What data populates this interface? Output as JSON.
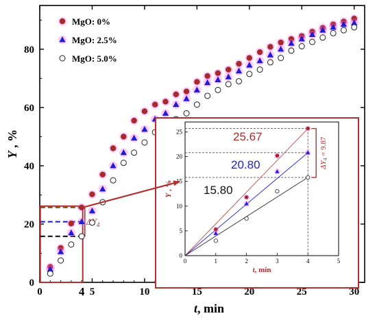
{
  "chart_data": {
    "type": "scatter",
    "xlabel_var": "t",
    "xlabel_unit": ", min",
    "ylabel_var": "Y",
    "ylabel_unit": " , %",
    "xlim": [
      0,
      31
    ],
    "ylim": [
      0,
      95
    ],
    "xticks": [
      0,
      5,
      10,
      15,
      20,
      25,
      30
    ],
    "yticks": [
      0,
      20,
      40,
      60,
      80
    ],
    "highlight_x_tick": "4",
    "legend_position": "top-left",
    "series": [
      {
        "name": "MgO: 0%",
        "marker": "filled-circle",
        "color": "#a52a2a",
        "glow": "#ff66ff",
        "x": [
          1,
          2,
          3,
          4,
          5,
          6,
          7,
          8,
          9,
          10,
          11,
          12,
          13,
          14,
          15,
          16,
          17,
          18,
          19,
          20,
          21,
          22,
          23,
          24,
          25,
          26,
          27,
          28,
          29,
          30
        ],
        "y": [
          5.3,
          11.8,
          20.2,
          25.7,
          30.2,
          37.0,
          46.0,
          50.0,
          55.5,
          58.7,
          61.0,
          62.0,
          64.5,
          65.5,
          68.8,
          70.8,
          71.8,
          73.0,
          75.0,
          77.0,
          79.0,
          80.8,
          82.3,
          83.5,
          84.5,
          86.0,
          87.3,
          88.5,
          89.5,
          90.5
        ]
      },
      {
        "name": "MgO: 2.5%",
        "marker": "filled-triangle",
        "color": "#1f1fd0",
        "glow": "#ff66ff",
        "x": [
          1,
          2,
          3,
          4,
          5,
          6,
          7,
          8,
          9,
          10,
          11,
          12,
          13,
          14,
          15,
          16,
          17,
          18,
          19,
          20,
          21,
          22,
          23,
          24,
          25,
          26,
          27,
          28,
          29,
          30
        ],
        "y": [
          4.5,
          10.5,
          17.0,
          20.8,
          24.5,
          32.0,
          40.0,
          44.5,
          49.5,
          52.5,
          56.0,
          58.0,
          61.0,
          63.0,
          66.0,
          68.5,
          69.5,
          70.5,
          72.5,
          74.5,
          76.0,
          78.0,
          80.0,
          82.0,
          83.5,
          85.0,
          86.5,
          87.5,
          88.5,
          89.0
        ]
      },
      {
        "name": "MgO: 5.0%",
        "marker": "open-circle",
        "color": "#222222",
        "glow": "none",
        "x": [
          1,
          2,
          3,
          4,
          5,
          6,
          7,
          8,
          9,
          10,
          11,
          12,
          13,
          14,
          15,
          16,
          17,
          18,
          19,
          20,
          21,
          22,
          23,
          24,
          25,
          26,
          27,
          28,
          29,
          30
        ],
        "y": [
          3.0,
          7.5,
          13.0,
          15.8,
          20.5,
          27.5,
          35.0,
          41.0,
          44.5,
          48.0,
          51.5,
          55.0,
          56.0,
          58.0,
          61.0,
          64.0,
          66.0,
          68.0,
          69.0,
          71.5,
          73.0,
          75.5,
          77.0,
          79.5,
          81.0,
          82.5,
          84.0,
          85.5,
          86.5,
          87.5
        ]
      }
    ],
    "main_marker": {
      "delta_label": "ΔY",
      "delta_sub": "4"
    },
    "inset": {
      "xlabel_var": "t",
      "xlabel_unit": ", min",
      "ylabel_var": "Y",
      "ylabel_unit": " , %",
      "xlim": [
        0,
        5
      ],
      "ylim": [
        0,
        27
      ],
      "xticks": [
        0,
        1,
        2,
        3,
        4,
        5
      ],
      "yticks": [
        0,
        5,
        10,
        15,
        20,
        25
      ],
      "at_x": 4,
      "values": [
        "25.67",
        "20.80",
        "15.80"
      ],
      "value_colors": [
        "#b02a2a",
        "#1f1fd0",
        "#111111"
      ],
      "delta_text": "ΔY",
      "delta_sub": "4",
      "delta_value": " = 9.87",
      "lines": [
        {
          "color": "#c06060",
          "x": [
            0,
            4
          ],
          "y": [
            0,
            25.67
          ]
        },
        {
          "color": "#3030e0",
          "x": [
            0,
            4
          ],
          "y": [
            0,
            20.8
          ]
        },
        {
          "color": "#333333",
          "x": [
            0,
            4
          ],
          "y": [
            0,
            15.8
          ]
        }
      ]
    }
  }
}
